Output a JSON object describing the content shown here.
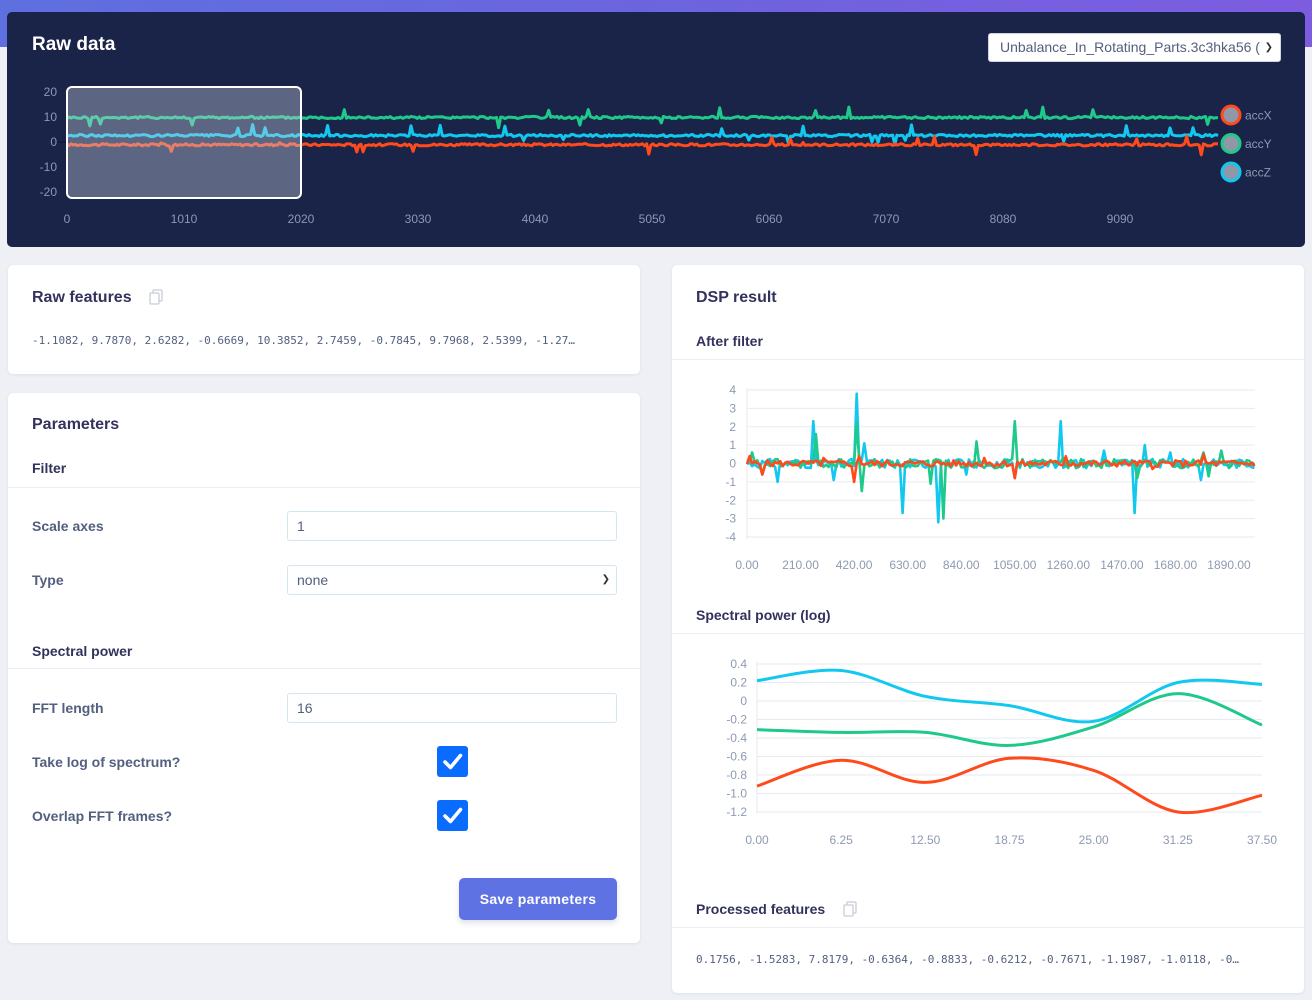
{
  "raw_data": {
    "title": "Raw data",
    "sample_select": {
      "value": "Unbalance_In_Rotating_Parts.3c3hka56 ("
    },
    "legend": [
      {
        "label": "accX",
        "color": "#ff4a1c"
      },
      {
        "label": "accY",
        "color": "#1ec98a"
      },
      {
        "label": "accZ",
        "color": "#12c8ee"
      }
    ]
  },
  "raw_features": {
    "title": "Raw features",
    "copy_icon": "copy-icon",
    "text": "-1.1082, 9.7870, 2.6282, -0.6669, 10.3852, 2.7459, -0.7845, 9.7968, 2.5399, -1.27…"
  },
  "parameters": {
    "title": "Parameters",
    "filter": {
      "heading": "Filter",
      "scale_axes": {
        "label": "Scale axes",
        "value": "1"
      },
      "type": {
        "label": "Type",
        "value": "none"
      }
    },
    "spectral_power": {
      "heading": "Spectral power",
      "fft_length": {
        "label": "FFT length",
        "value": "16"
      },
      "take_log": {
        "label": "Take log of spectrum?",
        "checked": true
      },
      "overlap": {
        "label": "Overlap FFT frames?",
        "checked": true
      }
    },
    "save_label": "Save parameters"
  },
  "dsp": {
    "title": "DSP result",
    "after_filter_title": "After filter",
    "spectral_title": "Spectral power (log)",
    "processed_title": "Processed features",
    "processed_text": "0.1756, -1.5283, 7.8179, -0.6364, -0.8833, -0.6212, -0.7671, -1.1987, -1.0118, -0…"
  },
  "chart_data": [
    {
      "id": "raw",
      "type": "line",
      "title": "Raw data",
      "x_ticks": [
        "0",
        "1010",
        "2020",
        "3030",
        "4040",
        "5050",
        "6060",
        "7070",
        "8080",
        "9090"
      ],
      "y_ticks": [
        "20",
        "10",
        "0",
        "-10",
        "-20"
      ],
      "xlim": [
        0,
        10100
      ],
      "ylim": [
        -20,
        20
      ],
      "selection": [
        0,
        2020
      ],
      "series": [
        {
          "name": "accX",
          "color": "#ff4a1c",
          "baseline": -1.1
        },
        {
          "name": "accY",
          "color": "#1ec98a",
          "baseline": 9.8
        },
        {
          "name": "accZ",
          "color": "#12c8ee",
          "baseline": 2.6
        }
      ]
    },
    {
      "id": "after_filter",
      "type": "line",
      "title": "After filter",
      "x_ticks": [
        "0.00",
        "210.00",
        "420.00",
        "630.00",
        "840.00",
        "1050.00",
        "1260.00",
        "1470.00",
        "1680.00",
        "1890.00"
      ],
      "y_ticks": [
        "4",
        "3",
        "2",
        "1",
        "0",
        "-1",
        "-2",
        "-3",
        "-4"
      ],
      "xlim": [
        0,
        1990
      ],
      "ylim": [
        -4,
        4
      ],
      "series": [
        {
          "name": "accX",
          "color": "#ff4a1c",
          "spikes": [
            [
              10,
              0.4
            ],
            [
              60,
              -0.6
            ],
            [
              300,
              0.3
            ],
            [
              420,
              -1.0
            ],
            [
              440,
              0.4
            ],
            [
              930,
              0.3
            ],
            [
              1050,
              -0.8
            ],
            [
              1250,
              0.4
            ],
            [
              1590,
              -0.3
            ],
            [
              1790,
              0.5
            ]
          ]
        },
        {
          "name": "accY",
          "color": "#1ec98a",
          "spikes": [
            [
              20,
              0.6
            ],
            [
              60,
              -0.6
            ],
            [
              270,
              1.6
            ],
            [
              430,
              2.2
            ],
            [
              450,
              -1.5
            ],
            [
              720,
              -1.1
            ],
            [
              770,
              -3.0
            ],
            [
              900,
              1.2
            ],
            [
              1050,
              2.3
            ],
            [
              1240,
              0.3
            ],
            [
              1530,
              -0.8
            ],
            [
              1790,
              0.6
            ],
            [
              1810,
              -0.7
            ],
            [
              1860,
              0.7
            ]
          ]
        },
        {
          "name": "accZ",
          "color": "#12c8ee",
          "spikes": [
            [
              120,
              -1.0
            ],
            [
              260,
              2.3
            ],
            [
              340,
              -0.9
            ],
            [
              430,
              3.8
            ],
            [
              460,
              1.1
            ],
            [
              610,
              -2.7
            ],
            [
              750,
              -3.2
            ],
            [
              860,
              -0.6
            ],
            [
              1050,
              -0.8
            ],
            [
              1230,
              2.3
            ],
            [
              1400,
              0.7
            ],
            [
              1520,
              -2.7
            ],
            [
              1560,
              1.0
            ],
            [
              1660,
              0.6
            ],
            [
              1780,
              -0.9
            ]
          ]
        }
      ]
    },
    {
      "id": "spectral",
      "type": "line",
      "title": "Spectral power (log)",
      "x": [
        0,
        6.25,
        12.5,
        18.75,
        25.0,
        31.25,
        37.5
      ],
      "x_ticks": [
        "0.00",
        "6.25",
        "12.50",
        "18.75",
        "25.00",
        "31.25",
        "37.50"
      ],
      "y_ticks": [
        "0.4",
        "0.2",
        "0",
        "-0.2",
        "-0.4",
        "-0.6",
        "-0.8",
        "-1.0",
        "-1.2"
      ],
      "xlim": [
        0,
        37.5
      ],
      "ylim": [
        -1.2,
        0.4
      ],
      "series": [
        {
          "name": "accX",
          "color": "#ff4a1c",
          "values": [
            -0.92,
            -0.64,
            -0.88,
            -0.62,
            -0.75,
            -1.2,
            -1.02
          ]
        },
        {
          "name": "accY",
          "color": "#1ec98a",
          "values": [
            -0.31,
            -0.34,
            -0.34,
            -0.48,
            -0.28,
            0.08,
            -0.26
          ]
        },
        {
          "name": "accZ",
          "color": "#12c8ee",
          "values": [
            0.22,
            0.33,
            0.05,
            -0.05,
            -0.22,
            0.2,
            0.18
          ]
        }
      ]
    }
  ]
}
